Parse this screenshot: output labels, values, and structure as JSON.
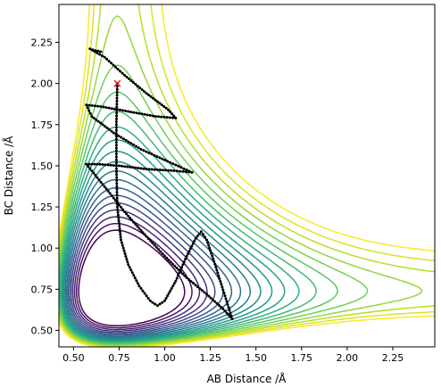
{
  "chart_data": {
    "type": "contour",
    "title": "",
    "xlabel": "AB Distance /Å",
    "ylabel": "BC Distance /Å",
    "xlim": [
      0.42,
      2.48
    ],
    "ylim": [
      0.4,
      2.48
    ],
    "xticks": [
      0.5,
      0.75,
      1.0,
      1.25,
      1.5,
      1.75,
      2.0,
      2.25
    ],
    "xtick_labels": [
      "0.50",
      "0.75",
      "1.00",
      "1.25",
      "1.50",
      "1.75",
      "2.00",
      "2.25"
    ],
    "yticks": [
      0.5,
      0.75,
      1.0,
      1.25,
      1.5,
      1.75,
      2.0,
      2.25
    ],
    "ytick_labels": [
      "0.50",
      "0.75",
      "1.00",
      "1.25",
      "1.50",
      "1.75",
      "2.00",
      "2.25"
    ],
    "colormap": "viridis",
    "contour_levels": 20,
    "start_point": {
      "x": 0.74,
      "y": 2.0,
      "marker": "x",
      "color": "#d62728"
    },
    "trajectory": {
      "color": "#000000",
      "points": [
        [
          0.74,
          2.0
        ],
        [
          0.735,
          1.75
        ],
        [
          0.735,
          1.5
        ],
        [
          0.74,
          1.25
        ],
        [
          0.76,
          1.05
        ],
        [
          0.8,
          0.9
        ],
        [
          0.86,
          0.77
        ],
        [
          0.92,
          0.68
        ],
        [
          0.96,
          0.65
        ],
        [
          1.0,
          0.68
        ],
        [
          1.06,
          0.8
        ],
        [
          1.12,
          0.95
        ],
        [
          1.17,
          1.06
        ],
        [
          1.2,
          1.1
        ],
        [
          1.23,
          1.05
        ],
        [
          1.27,
          0.92
        ],
        [
          1.31,
          0.78
        ],
        [
          1.35,
          0.64
        ],
        [
          1.37,
          0.57
        ],
        [
          1.32,
          0.63
        ],
        [
          1.23,
          0.72
        ],
        [
          1.12,
          0.82
        ],
        [
          1.01,
          0.94
        ],
        [
          0.9,
          1.07
        ],
        [
          0.78,
          1.22
        ],
        [
          0.68,
          1.36
        ],
        [
          0.6,
          1.47
        ],
        [
          0.57,
          1.51
        ],
        [
          0.63,
          1.51
        ],
        [
          0.75,
          1.5
        ],
        [
          0.9,
          1.48
        ],
        [
          1.05,
          1.47
        ],
        [
          1.15,
          1.46
        ],
        [
          1.03,
          1.52
        ],
        [
          0.87,
          1.6
        ],
        [
          0.72,
          1.7
        ],
        [
          0.6,
          1.8
        ],
        [
          0.57,
          1.87
        ],
        [
          0.65,
          1.86
        ],
        [
          0.8,
          1.83
        ],
        [
          0.95,
          1.8
        ],
        [
          1.06,
          1.79
        ],
        [
          1.02,
          1.84
        ],
        [
          0.9,
          1.94
        ],
        [
          0.78,
          2.05
        ],
        [
          0.67,
          2.16
        ],
        [
          0.59,
          2.21
        ],
        [
          0.62,
          2.2
        ],
        [
          0.66,
          2.19
        ]
      ]
    }
  }
}
